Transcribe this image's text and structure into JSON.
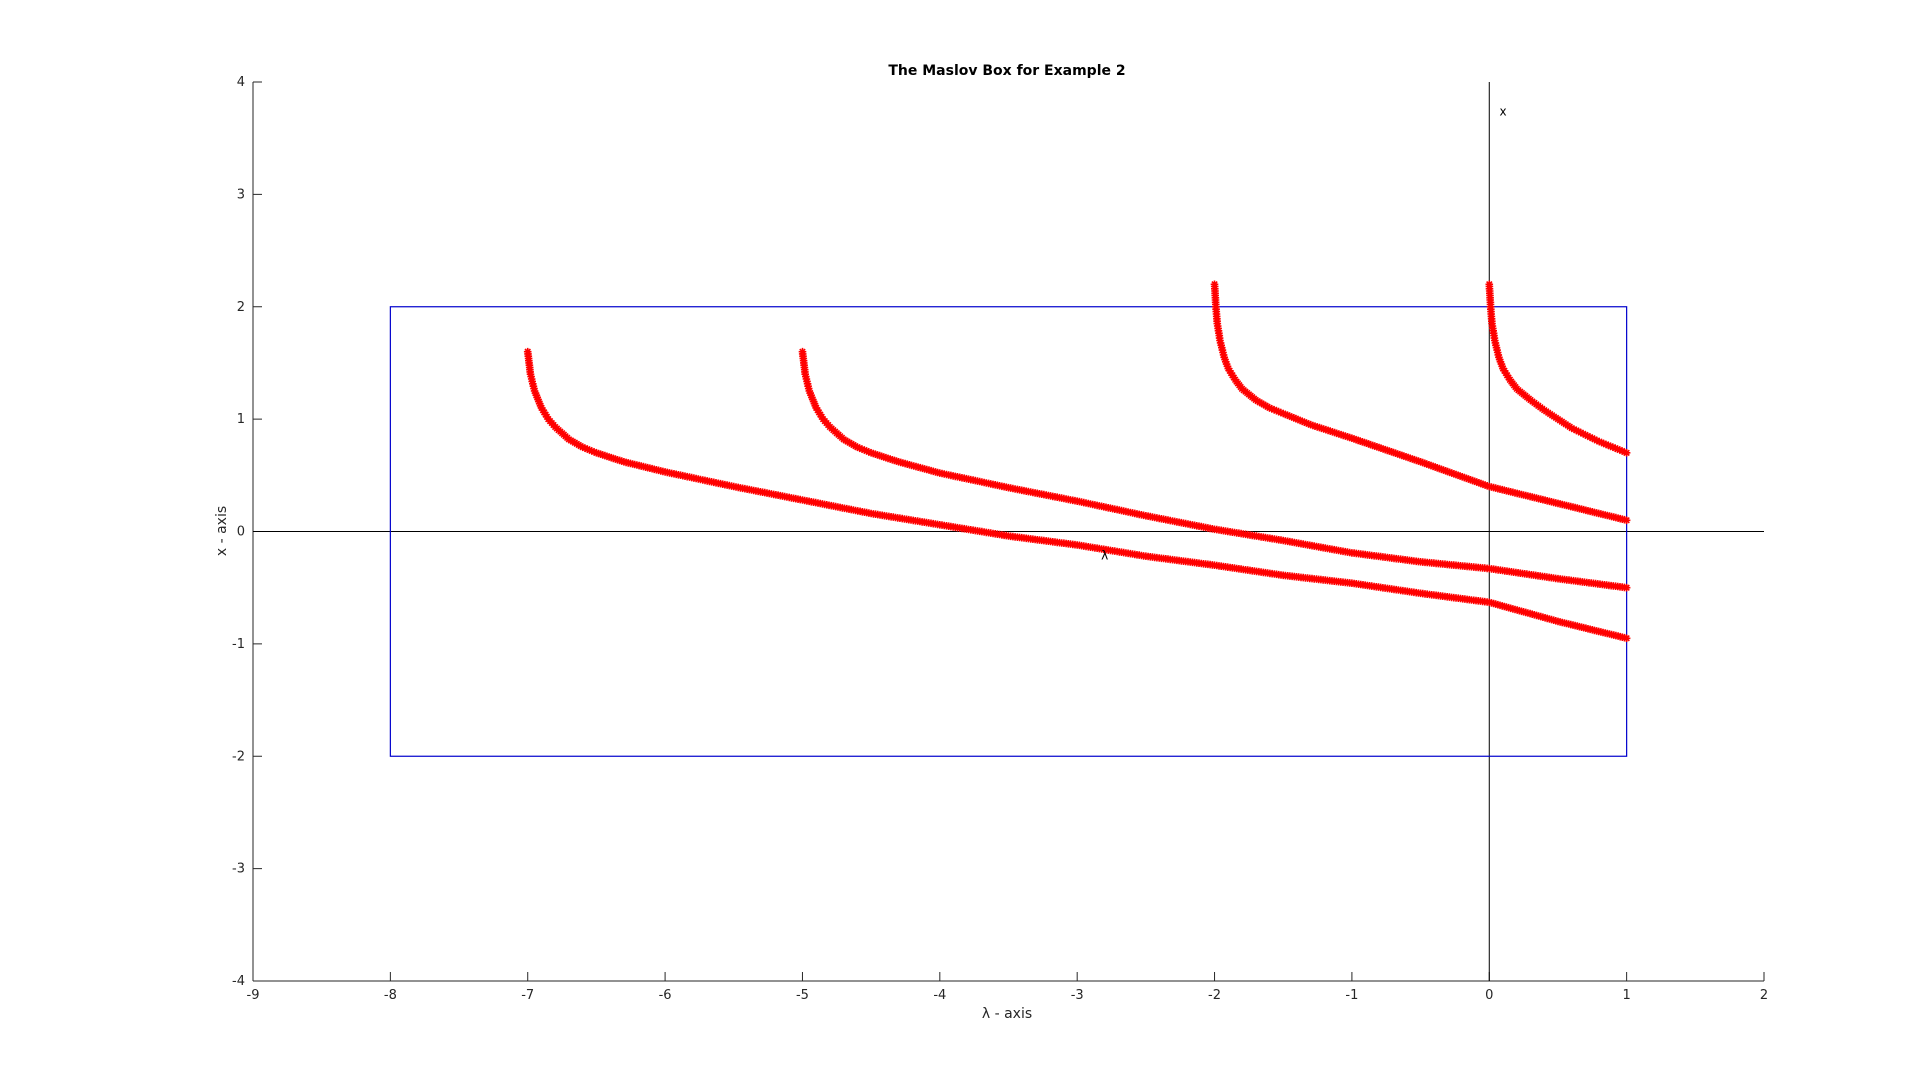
{
  "colors": {
    "box": "#0000cc",
    "markers": "#ff0000",
    "axis_lines": "#000000",
    "frame": "#262626"
  },
  "chart_data": {
    "type": "scatter",
    "title": "The Maslov Box for Example 2",
    "xlabel": "λ - axis",
    "ylabel": "x - axis",
    "xlim": [
      -9,
      2
    ],
    "ylim": [
      -4,
      4
    ],
    "xticks": [
      "-9",
      "-8",
      "-7",
      "-6",
      "-5",
      "-4",
      "-3",
      "-2",
      "-1",
      "0",
      "1",
      "2"
    ],
    "yticks": [
      "4",
      "3",
      "2",
      "1",
      "0",
      "-1",
      "-2",
      "-3",
      "-4"
    ],
    "grid": false,
    "legend": "none",
    "marker": "asterisk",
    "box": {
      "lambda": [
        -8,
        1
      ],
      "x": [
        -2,
        2
      ]
    },
    "reference_lines": {
      "horizontal_x": 0,
      "vertical_lambda": 0
    },
    "annotations": [
      {
        "text": "x",
        "lambda": 0.1,
        "x": 3.7
      },
      {
        "text": "λ",
        "lambda": -2.8,
        "x": -0.25
      }
    ],
    "series": [
      {
        "lambda": [
          -7,
          -6.98,
          -6.95,
          -6.9,
          -6.85,
          -6.8,
          -6.7,
          -6.6,
          -6.5,
          -6.3,
          -6,
          -5.5,
          -5,
          -4.5,
          -4,
          -3.5,
          -3,
          -2.5,
          -2,
          -1.5,
          -1,
          -0.5,
          0,
          0.5,
          1
        ],
        "x": [
          1.6,
          1.4,
          1.25,
          1.1,
          1.0,
          0.93,
          0.82,
          0.75,
          0.7,
          0.62,
          0.53,
          0.4,
          0.28,
          0.16,
          0.06,
          -0.04,
          -0.12,
          -0.22,
          -0.3,
          -0.39,
          -0.46,
          -0.55,
          -0.63,
          -0.8,
          -0.95
        ]
      },
      {
        "lambda": [
          -5,
          -4.98,
          -4.95,
          -4.9,
          -4.85,
          -4.8,
          -4.7,
          -4.6,
          -4.5,
          -4.3,
          -4,
          -3.5,
          -3,
          -2.5,
          -2,
          -1.5,
          -1,
          -0.5,
          0,
          0.5,
          1
        ],
        "x": [
          1.6,
          1.4,
          1.25,
          1.1,
          1.0,
          0.93,
          0.82,
          0.75,
          0.7,
          0.62,
          0.52,
          0.39,
          0.27,
          0.14,
          0.02,
          -0.08,
          -0.19,
          -0.27,
          -0.33,
          -0.42,
          -0.5
        ]
      },
      {
        "lambda": [
          -2,
          -1.99,
          -1.98,
          -1.96,
          -1.93,
          -1.9,
          -1.85,
          -1.8,
          -1.7,
          -1.6,
          -1.5,
          -1.3,
          -1,
          -0.5,
          0,
          0.5,
          1
        ],
        "x": [
          2.2,
          2.0,
          1.85,
          1.7,
          1.55,
          1.45,
          1.35,
          1.27,
          1.17,
          1.1,
          1.05,
          0.95,
          0.83,
          0.62,
          0.4,
          0.25,
          0.1
        ]
      },
      {
        "lambda": [
          0,
          0.01,
          0.02,
          0.04,
          0.07,
          0.1,
          0.15,
          0.2,
          0.3,
          0.4,
          0.5,
          0.6,
          0.7,
          0.8,
          0.9,
          1
        ],
        "x": [
          2.2,
          2.0,
          1.85,
          1.7,
          1.55,
          1.45,
          1.35,
          1.27,
          1.17,
          1.08,
          1.0,
          0.92,
          0.86,
          0.8,
          0.75,
          0.7
        ]
      }
    ]
  }
}
